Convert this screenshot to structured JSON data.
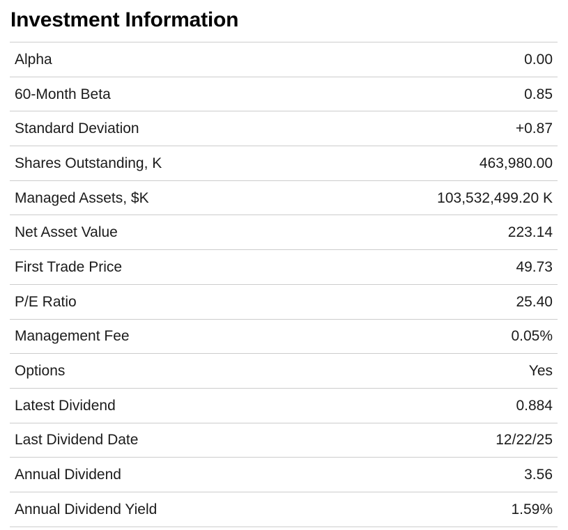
{
  "title": "Investment Information",
  "theme": {
    "background": "#ffffff",
    "title": "#050505",
    "text": "#1b1b1b",
    "divider": "#cccccc"
  },
  "table": {
    "rows": [
      {
        "label": "Alpha",
        "value": "0.00"
      },
      {
        "label": "60-Month Beta",
        "value": "0.85"
      },
      {
        "label": "Standard Deviation",
        "value": "+0.87"
      },
      {
        "label": "Shares Outstanding, K",
        "value": "463,980.00"
      },
      {
        "label": "Managed Assets, $K",
        "value": "103,532,499.20 K"
      },
      {
        "label": "Net Asset Value",
        "value": "223.14"
      },
      {
        "label": "First Trade Price",
        "value": "49.73"
      },
      {
        "label": "P/E Ratio",
        "value": "25.40"
      },
      {
        "label": "Management Fee",
        "value": "0.05%"
      },
      {
        "label": "Options",
        "value": "Yes"
      },
      {
        "label": "Latest Dividend",
        "value": "0.884"
      },
      {
        "label": "Last Dividend Date",
        "value": "12/22/25"
      },
      {
        "label": "Annual Dividend",
        "value": "3.56"
      },
      {
        "label": "Annual Dividend Yield",
        "value": "1.59%"
      }
    ]
  }
}
